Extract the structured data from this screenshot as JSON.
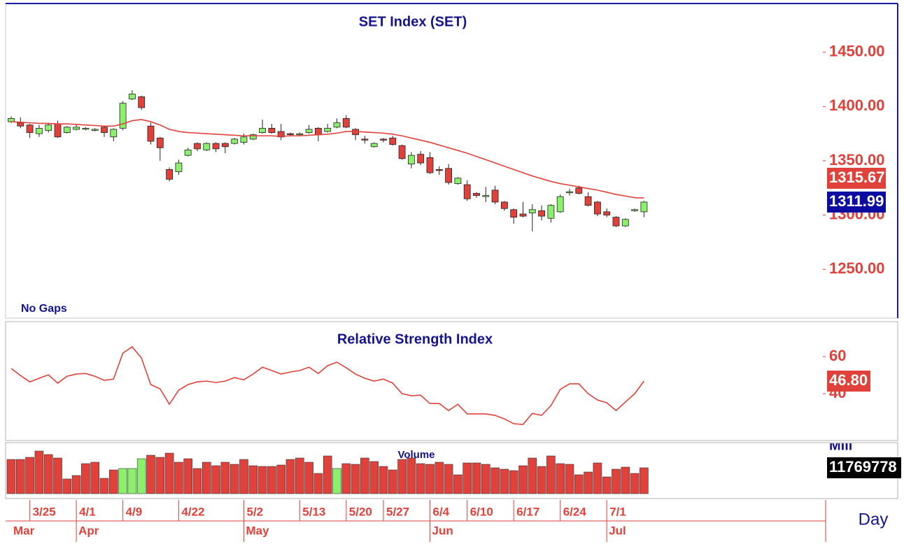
{
  "chart_data": [
    {
      "type": "candlestick",
      "title": "SET Index (SET)",
      "note": "No Gaps",
      "period": "Day",
      "categories": [
        null,
        null,
        "3/25",
        null,
        null,
        null,
        null,
        "4/1",
        null,
        null,
        null,
        null,
        "4/9",
        null,
        null,
        null,
        null,
        null,
        "4/22",
        null,
        null,
        null,
        null,
        null,
        null,
        "5/2",
        null,
        null,
        null,
        null,
        null,
        "5/13",
        null,
        null,
        null,
        null,
        "5/20",
        null,
        null,
        null,
        "5/27",
        null,
        null,
        null,
        null,
        "6/4",
        null,
        null,
        null,
        "6/10",
        null,
        null,
        null,
        null,
        "6/17",
        null,
        null,
        null,
        null,
        "6/24",
        null,
        null,
        null,
        null,
        "7/1",
        null,
        null,
        null,
        null
      ],
      "months": [
        "Mar",
        null,
        null,
        null,
        null,
        null,
        null,
        "Apr",
        null,
        null,
        null,
        null,
        null,
        null,
        null,
        null,
        null,
        null,
        null,
        null,
        null,
        null,
        null,
        null,
        null,
        "May",
        null,
        null,
        null,
        null,
        null,
        null,
        null,
        null,
        null,
        null,
        null,
        null,
        null,
        null,
        null,
        null,
        null,
        null,
        null,
        "Jun",
        null,
        null,
        null,
        null,
        null,
        null,
        null,
        null,
        null,
        null,
        null,
        null,
        null,
        null,
        null,
        null,
        null,
        null,
        "Jul",
        null,
        null,
        null,
        null
      ],
      "open": [
        1386,
        1385,
        1383,
        1375,
        1378,
        1384,
        1376,
        1379,
        1379.5,
        1378,
        1381,
        1372,
        1380,
        1407,
        1409,
        1382,
        1371,
        1342,
        1340,
        1355,
        1366,
        1360,
        1366,
        1366,
        1366,
        1367,
        1370,
        1376,
        1380,
        1377,
        1375,
        1374,
        1376,
        1380,
        1377,
        1381,
        1389,
        1379,
        1370,
        1363,
        1370,
        1371,
        1364,
        1347,
        1356,
        1353,
        1342,
        1343,
        1329,
        1328,
        1320,
        1317.5,
        1323,
        1312,
        1305,
        1301,
        1302,
        1304,
        1297,
        1303,
        1321,
        1325,
        1317,
        1312,
        1303,
        1298,
        1290,
        1304,
        1303
      ],
      "high": [
        1391,
        1390,
        1384,
        1383,
        1385,
        1387,
        1382,
        1384,
        1381,
        1380,
        1382,
        1380,
        1405,
        1415,
        1410,
        1385,
        1372,
        1344,
        1351,
        1362,
        1367,
        1367,
        1367,
        1367,
        1371,
        1375,
        1375,
        1388,
        1384,
        1384,
        1376,
        1376,
        1383,
        1381,
        1384,
        1389,
        1392,
        1380,
        1373,
        1367,
        1371,
        1373,
        1365,
        1358,
        1359,
        1358,
        1345,
        1347,
        1335,
        1332,
        1321,
        1326,
        1327,
        1313,
        1306,
        1312,
        1310,
        1309,
        1310,
        1319,
        1324,
        1327,
        1321,
        1313,
        1306,
        1299,
        1297,
        1306,
        1313
      ],
      "low": [
        1385,
        1380,
        1371,
        1372,
        1376,
        1371,
        1375,
        1378,
        1378,
        1377,
        1372,
        1368,
        1378,
        1406,
        1397,
        1365,
        1350,
        1331,
        1337,
        1354,
        1359,
        1359,
        1358,
        1357,
        1365,
        1365,
        1369,
        1375,
        1375,
        1369,
        1373,
        1373,
        1375,
        1368,
        1376,
        1380,
        1380,
        1369,
        1366,
        1362,
        1367,
        1364,
        1351,
        1343,
        1346,
        1338,
        1337,
        1328,
        1328,
        1313,
        1316,
        1312,
        1310,
        1304,
        1292,
        1298,
        1285,
        1295,
        1293,
        1302,
        1318,
        1319,
        1308,
        1299,
        1298,
        1289,
        1289,
        1303,
        1298
      ],
      "close": [
        1389,
        1382,
        1376,
        1380,
        1383,
        1372,
        1381,
        1381,
        1380,
        1379,
        1376,
        1379,
        1403,
        1411.5,
        1399,
        1368,
        1362,
        1333,
        1348,
        1360,
        1361,
        1366,
        1361,
        1363,
        1370,
        1372,
        1374,
        1380,
        1376,
        1372,
        1374.5,
        1375,
        1379,
        1374,
        1380,
        1385,
        1381,
        1374,
        1369.5,
        1366,
        1369,
        1365,
        1352,
        1355,
        1348,
        1339,
        1341,
        1330,
        1334,
        1315,
        1318,
        1318,
        1312,
        1306,
        1298,
        1299,
        1305,
        1299,
        1309,
        1317,
        1321.5,
        1320,
        1309,
        1301,
        1300,
        1290,
        1296,
        1305,
        1311.99
      ],
      "up_color": "#8cf06c",
      "down_color": "#e0413a",
      "close_label_color": "#0c0ca0",
      "ma": {
        "color": "#e0413a",
        "values": [
          1386,
          1385.5,
          1385,
          1384.5,
          1384.5,
          1384,
          1384,
          1383.5,
          1383,
          1382.5,
          1382,
          1382,
          1384,
          1387,
          1388,
          1386,
          1383,
          1379,
          1377,
          1376,
          1375.5,
          1375,
          1374.5,
          1374,
          1373.5,
          1373,
          1373,
          1373,
          1373,
          1372.5,
          1373,
          1373,
          1373.5,
          1374,
          1374.5,
          1375.5,
          1377,
          1377,
          1376.5,
          1376,
          1375.5,
          1374.5,
          1373,
          1371,
          1369,
          1367,
          1364.5,
          1362,
          1359.5,
          1357,
          1354,
          1351,
          1348,
          1345,
          1342,
          1339,
          1336,
          1333.5,
          1331,
          1329,
          1327.5,
          1326,
          1324.5,
          1323,
          1321,
          1319,
          1317.5,
          1316,
          1315.67
        ]
      },
      "ylim": [
        1205,
        1493
      ],
      "yticks": [
        {
          "value": 1450,
          "label": "1450.00"
        },
        {
          "value": 1400,
          "label": "1400.00"
        },
        {
          "value": 1350,
          "label": "1350.00"
        },
        {
          "value": 1300,
          "label": "1300.00"
        },
        {
          "value": 1250,
          "label": "1250.00"
        }
      ]
    },
    {
      "type": "line",
      "title": "Relative Strength Index",
      "color": "#e0413a",
      "values": [
        53.6,
        49.8,
        46.4,
        48.3,
        50.2,
        45.7,
        49.4,
        50.6,
        50.9,
        49.4,
        47.2,
        47.9,
        61.9,
        65.3,
        59.2,
        44.9,
        42.6,
        34.3,
        41.9,
        44.9,
        46.4,
        46.8,
        46,
        46.8,
        48.7,
        47.5,
        50.6,
        54.3,
        52.5,
        50.6,
        51.7,
        52.5,
        54.3,
        50.9,
        55.1,
        57,
        54,
        50.6,
        48.3,
        46.8,
        47.9,
        45.7,
        40,
        38.9,
        39.2,
        34.7,
        34.7,
        30.9,
        34.3,
        29.1,
        29.1,
        29.1,
        28.3,
        26.4,
        23.8,
        23.4,
        29.4,
        28.3,
        33.6,
        42.3,
        45.3,
        45.3,
        40,
        36.6,
        35.1,
        30.9,
        35.5,
        40,
        46.8
      ],
      "value_labels": [
        null,
        null,
        null,
        null,
        null,
        null,
        null,
        null,
        null,
        null,
        null,
        null,
        null,
        null,
        null,
        null,
        null,
        null,
        null,
        null,
        null,
        null,
        null,
        null,
        null,
        null,
        null,
        null,
        null,
        null,
        null,
        null,
        null,
        null,
        null,
        null,
        null,
        null,
        null,
        null,
        null,
        null,
        null,
        null,
        null,
        null,
        null,
        null,
        null,
        null,
        null,
        null,
        null,
        null,
        null,
        null,
        null,
        null,
        null,
        null,
        null,
        null,
        null,
        null,
        null,
        null,
        null,
        null,
        "46.80"
      ],
      "ylim": [
        15.5,
        78.1
      ],
      "yticks": [
        60,
        40
      ]
    },
    {
      "type": "bar",
      "title": "Volume",
      "ylabel": "Mill",
      "values": [
        15580000,
        15580000,
        16540000,
        19400000,
        17810000,
        16220000,
        6680000,
        8270000,
        13670000,
        14310000,
        7000000,
        10810000,
        11450000,
        11450000,
        15900000,
        17490000,
        16540000,
        18440000,
        14310000,
        15900000,
        11450000,
        14310000,
        12720000,
        14310000,
        13360000,
        15580000,
        12720000,
        12400000,
        12400000,
        13040000,
        15580000,
        16220000,
        14310000,
        9220000,
        17170000,
        11450000,
        13670000,
        13360000,
        16220000,
        14630000,
        12400000,
        10810000,
        15580000,
        16220000,
        13670000,
        13360000,
        14310000,
        13360000,
        8590000,
        13990000,
        13990000,
        13360000,
        11770000,
        11130000,
        10490000,
        12720000,
        16220000,
        12400000,
        17170000,
        13670000,
        13360000,
        8590000,
        9860000,
        13990000,
        7630000,
        11130000,
        12080000,
        9220000,
        11769778
      ],
      "colors": [
        "#e0413a",
        "#e0413a",
        "#e0413a",
        "#e0413a",
        "#e0413a",
        "#e0413a",
        "#e0413a",
        "#e0413a",
        "#e0413a",
        "#e0413a",
        "#e0413a",
        "#e0413a",
        "#8cf06c",
        "#8cf06c",
        "#8cf06c",
        "#e0413a",
        "#e0413a",
        "#e0413a",
        "#e0413a",
        "#e0413a",
        "#e0413a",
        "#e0413a",
        "#e0413a",
        "#e0413a",
        "#e0413a",
        "#e0413a",
        "#e0413a",
        "#e0413a",
        "#e0413a",
        "#e0413a",
        "#e0413a",
        "#e0413a",
        "#e0413a",
        "#e0413a",
        "#e0413a",
        "#8cf06c",
        "#e0413a",
        "#e0413a",
        "#e0413a",
        "#e0413a",
        "#e0413a",
        "#e0413a",
        "#e0413a",
        "#e0413a",
        "#e0413a",
        "#e0413a",
        "#e0413a",
        "#e0413a",
        "#e0413a",
        "#e0413a",
        "#e0413a",
        "#e0413a",
        "#e0413a",
        "#e0413a",
        "#e0413a",
        "#e0413a",
        "#e0413a",
        "#e0413a",
        "#e0413a",
        "#e0413a",
        "#e0413a",
        "#e0413a",
        "#e0413a",
        "#e0413a",
        "#e0413a",
        "#e0413a",
        "#e0413a",
        "#e0413a",
        "#e0413a"
      ],
      "ylim": [
        0,
        21000000
      ]
    }
  ]
}
